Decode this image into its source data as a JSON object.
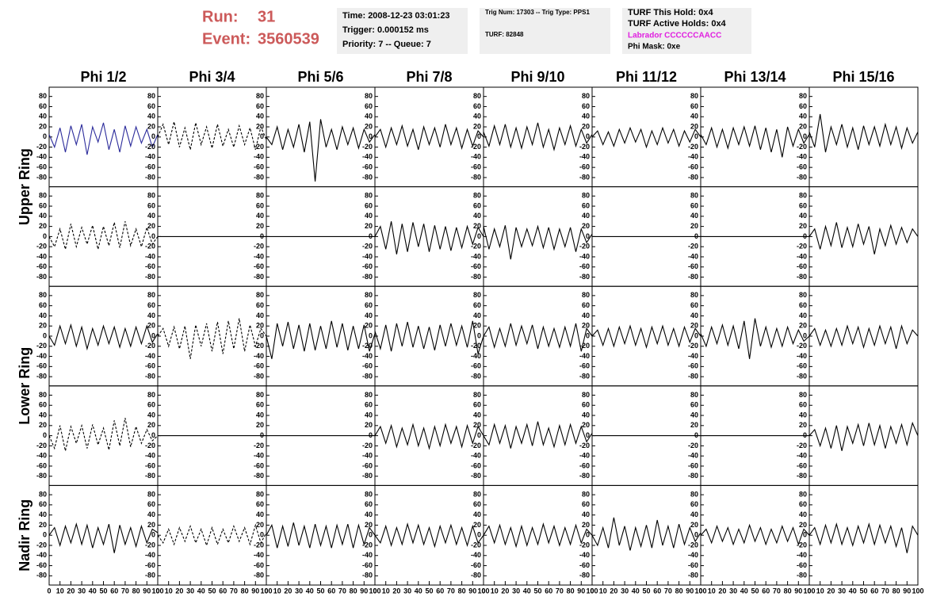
{
  "header": {
    "run_label": "Run:",
    "run": "31",
    "event_label": "Event:",
    "event": "3560539",
    "info": [
      [
        "Time: 2008-12-23 03:01:23",
        "Trigger: 0.000152 ms",
        "Priority: 7 -- Queue: 7"
      ],
      [
        "Trig Num: 17303 -- Trig Type: PPS1",
        "TURF: 82848"
      ],
      [
        "TURF This Hold: 0x4",
        "TURF Active Holds: 0x4",
        "Labrador CCCCCCAACC",
        "Phi Mask: 0xe"
      ]
    ]
  },
  "chart_data": {
    "type": "line",
    "columns": [
      "Phi 1/2",
      "Phi 3/4",
      "Phi 5/6",
      "Phi 7/8",
      "Phi 9/10",
      "Phi 11/12",
      "Phi 13/14",
      "Phi 15/16"
    ],
    "ring_labels": [
      "Upper Ring",
      "Lower Ring",
      "Nadir Ring"
    ],
    "xlim": [
      0,
      100
    ],
    "xticks": [
      0,
      10,
      20,
      30,
      40,
      50,
      60,
      70,
      80,
      90,
      100
    ],
    "ylim": [
      -92,
      92
    ],
    "yticks": [
      -80,
      -60,
      -40,
      -20,
      0,
      20,
      40,
      60,
      80
    ],
    "x": [
      0,
      5,
      10,
      15,
      20,
      25,
      30,
      35,
      40,
      45,
      50,
      55,
      60,
      65,
      70,
      75,
      80,
      85,
      90,
      95,
      100
    ],
    "panels": [
      [
        {
          "color": "#2b2b9b",
          "dash": false,
          "values": [
            5,
            -20,
            18,
            -30,
            22,
            -15,
            25,
            -35,
            20,
            -10,
            28,
            -25,
            15,
            -30,
            22,
            -18,
            20,
            -12,
            15,
            -20,
            5
          ]
        },
        {
          "color": "#000000",
          "dash": true,
          "values": [
            0,
            25,
            -15,
            30,
            -20,
            18,
            -25,
            28,
            -15,
            20,
            -22,
            25,
            -18,
            15,
            -20,
            22,
            -15,
            18,
            -25,
            20,
            -5
          ]
        },
        {
          "color": "#000000",
          "dash": false,
          "values": [
            0,
            -15,
            20,
            -25,
            15,
            -20,
            25,
            -30,
            30,
            -88,
            35,
            -20,
            15,
            -25,
            20,
            -15,
            18,
            -22,
            15,
            -10,
            5
          ]
        },
        {
          "color": "#000000",
          "dash": false,
          "values": [
            0,
            15,
            -20,
            18,
            -15,
            22,
            -18,
            15,
            -25,
            20,
            -15,
            18,
            -20,
            25,
            -15,
            18,
            -22,
            15,
            -18,
            12,
            0
          ]
        },
        {
          "color": "#000000",
          "dash": false,
          "values": [
            10,
            -18,
            22,
            -15,
            25,
            -20,
            18,
            -22,
            20,
            -15,
            28,
            -20,
            15,
            -25,
            18,
            -15,
            22,
            -18,
            15,
            -12,
            5
          ]
        },
        {
          "color": "#000000",
          "dash": false,
          "values": [
            0,
            12,
            -15,
            10,
            -18,
            15,
            -12,
            18,
            -10,
            15,
            -20,
            12,
            -15,
            18,
            -12,
            15,
            -18,
            12,
            -10,
            15,
            0
          ]
        },
        {
          "color": "#000000",
          "dash": false,
          "values": [
            5,
            -15,
            18,
            -20,
            15,
            -22,
            18,
            -15,
            20,
            -18,
            22,
            -25,
            18,
            -30,
            15,
            -40,
            20,
            -18,
            15,
            -12,
            5
          ]
        },
        {
          "color": "#000000",
          "dash": false,
          "values": [
            10,
            -20,
            45,
            -30,
            20,
            -15,
            25,
            -20,
            18,
            -25,
            22,
            -15,
            20,
            -18,
            25,
            -15,
            20,
            -22,
            18,
            -12,
            10
          ]
        }
      ],
      [
        {
          "color": "#000000",
          "dash": true,
          "values": [
            0,
            -20,
            15,
            -25,
            25,
            -20,
            18,
            -15,
            22,
            -25,
            20,
            -18,
            28,
            -22,
            30,
            -18,
            15,
            -20,
            18,
            -15,
            0
          ]
        },
        {
          "color": "#000000",
          "dash": false,
          "values": [
            0,
            0,
            0,
            0,
            0,
            0,
            0,
            0,
            0,
            0,
            0,
            0,
            0,
            0,
            0,
            0,
            0,
            0,
            0,
            0,
            0
          ]
        },
        {
          "color": "#000000",
          "dash": false,
          "values": [
            0,
            0,
            0,
            0,
            0,
            0,
            0,
            0,
            0,
            0,
            0,
            0,
            0,
            0,
            0,
            0,
            0,
            0,
            0,
            0,
            0
          ]
        },
        {
          "color": "#000000",
          "dash": false,
          "values": [
            0,
            20,
            -25,
            30,
            -35,
            25,
            -30,
            28,
            -20,
            25,
            -30,
            22,
            -25,
            20,
            -28,
            18,
            -22,
            20,
            -15,
            18,
            0
          ]
        },
        {
          "color": "#000000",
          "dash": false,
          "values": [
            20,
            -25,
            15,
            -20,
            22,
            -45,
            18,
            -20,
            15,
            -18,
            20,
            -22,
            18,
            -25,
            15,
            -20,
            18,
            -30,
            15,
            -12,
            5
          ]
        },
        {
          "color": "#000000",
          "dash": false,
          "values": [
            0,
            0,
            0,
            0,
            0,
            0,
            0,
            0,
            0,
            0,
            0,
            0,
            0,
            0,
            0,
            0,
            0,
            0,
            0,
            0,
            0
          ]
        },
        {
          "color": "#000000",
          "dash": false,
          "values": [
            0,
            0,
            0,
            0,
            0,
            0,
            0,
            0,
            0,
            0,
            0,
            0,
            0,
            0,
            0,
            0,
            0,
            0,
            0,
            0,
            0
          ]
        },
        {
          "color": "#000000",
          "dash": false,
          "values": [
            0,
            15,
            -25,
            20,
            -18,
            28,
            -22,
            18,
            -20,
            25,
            -15,
            20,
            -35,
            15,
            -18,
            22,
            -15,
            18,
            -12,
            15,
            0
          ]
        }
      ],
      [
        {
          "color": "#000000",
          "dash": false,
          "values": [
            0,
            -18,
            20,
            -15,
            22,
            -20,
            18,
            -25,
            15,
            -18,
            20,
            -15,
            18,
            -22,
            15,
            -20,
            18,
            -15,
            20,
            -12,
            5
          ]
        },
        {
          "color": "#000000",
          "dash": true,
          "values": [
            0,
            15,
            -20,
            18,
            -25,
            20,
            -45,
            22,
            -20,
            25,
            -30,
            28,
            -35,
            30,
            -25,
            35,
            -30,
            22,
            -20,
            15,
            0
          ]
        },
        {
          "color": "#000000",
          "dash": false,
          "values": [
            0,
            -45,
            25,
            -20,
            28,
            -25,
            22,
            -30,
            25,
            -28,
            20,
            -25,
            30,
            -22,
            25,
            -28,
            20,
            -25,
            22,
            -30,
            5
          ]
        },
        {
          "color": "#000000",
          "dash": false,
          "values": [
            10,
            -25,
            22,
            -30,
            25,
            -20,
            28,
            -22,
            20,
            -25,
            18,
            -28,
            22,
            -20,
            25,
            -18,
            20,
            -22,
            30,
            -35,
            0
          ]
        },
        {
          "color": "#000000",
          "dash": false,
          "values": [
            0,
            18,
            -22,
            15,
            -20,
            25,
            -18,
            20,
            -15,
            22,
            -25,
            18,
            -20,
            15,
            -22,
            18,
            -20,
            25,
            -30,
            15,
            0
          ]
        },
        {
          "color": "#000000",
          "dash": false,
          "values": [
            0,
            12,
            -18,
            15,
            -20,
            18,
            -15,
            20,
            -18,
            15,
            -22,
            18,
            -15,
            20,
            -18,
            15,
            -20,
            18,
            -12,
            15,
            0
          ]
        },
        {
          "color": "#000000",
          "dash": false,
          "values": [
            5,
            -20,
            18,
            -15,
            22,
            -18,
            20,
            -25,
            30,
            -45,
            35,
            -20,
            18,
            -22,
            15,
            -20,
            18,
            -15,
            12,
            -10,
            0
          ]
        },
        {
          "color": "#000000",
          "dash": false,
          "values": [
            0,
            15,
            -18,
            12,
            -20,
            15,
            -18,
            20,
            -15,
            18,
            -22,
            15,
            -18,
            20,
            -15,
            18,
            -25,
            20,
            -15,
            12,
            0
          ]
        }
      ],
      [
        {
          "color": "#000000",
          "dash": true,
          "values": [
            0,
            -25,
            20,
            -30,
            18,
            -15,
            20,
            -25,
            22,
            -18,
            15,
            -28,
            30,
            -20,
            35,
            -22,
            18,
            -15,
            12,
            -10,
            0
          ]
        },
        {
          "color": "#000000",
          "dash": false,
          "values": [
            0,
            0,
            0,
            0,
            0,
            0,
            0,
            0,
            0,
            0,
            0,
            0,
            0,
            0,
            0,
            0,
            0,
            0,
            0,
            0,
            0
          ]
        },
        {
          "color": "#000000",
          "dash": false,
          "values": [
            0,
            0,
            0,
            0,
            0,
            0,
            0,
            0,
            0,
            0,
            0,
            0,
            0,
            0,
            0,
            0,
            0,
            0,
            0,
            0,
            0
          ]
        },
        {
          "color": "#000000",
          "dash": false,
          "values": [
            0,
            18,
            -15,
            20,
            -22,
            15,
            -18,
            22,
            -20,
            15,
            -25,
            18,
            -20,
            22,
            -15,
            18,
            -22,
            20,
            -15,
            18,
            0
          ]
        },
        {
          "color": "#000000",
          "dash": false,
          "values": [
            0,
            -18,
            22,
            -15,
            20,
            -25,
            18,
            -15,
            22,
            -20,
            28,
            -18,
            15,
            -22,
            20,
            -18,
            22,
            -15,
            18,
            -12,
            5
          ]
        },
        {
          "color": "#000000",
          "dash": false,
          "values": [
            0,
            0,
            0,
            0,
            0,
            0,
            0,
            0,
            0,
            0,
            0,
            0,
            0,
            0,
            0,
            0,
            0,
            0,
            0,
            0,
            0
          ]
        },
        {
          "color": "#000000",
          "dash": false,
          "values": [
            0,
            0,
            0,
            0,
            0,
            0,
            0,
            0,
            0,
            0,
            0,
            0,
            0,
            0,
            0,
            0,
            0,
            0,
            0,
            0,
            0
          ]
        },
        {
          "color": "#000000",
          "dash": false,
          "values": [
            0,
            12,
            -20,
            15,
            -25,
            20,
            -30,
            18,
            -15,
            22,
            -20,
            25,
            -18,
            20,
            -25,
            18,
            -15,
            22,
            -18,
            25,
            0
          ]
        }
      ],
      [
        {
          "color": "#000000",
          "dash": false,
          "values": [
            0,
            15,
            -20,
            18,
            -15,
            22,
            -18,
            20,
            -25,
            15,
            -18,
            22,
            -35,
            20,
            -18,
            15,
            -22,
            18,
            -15,
            12,
            5
          ]
        },
        {
          "color": "#000000",
          "dash": true,
          "values": [
            0,
            -15,
            12,
            -18,
            15,
            -12,
            18,
            -15,
            12,
            -20,
            15,
            -18,
            12,
            -15,
            18,
            -12,
            15,
            -18,
            20,
            -15,
            5
          ]
        },
        {
          "color": "#000000",
          "dash": false,
          "values": [
            0,
            20,
            -25,
            18,
            -22,
            25,
            -20,
            18,
            -25,
            22,
            -20,
            18,
            -25,
            20,
            -18,
            22,
            -25,
            20,
            -18,
            15,
            0
          ]
        },
        {
          "color": "#000000",
          "dash": false,
          "values": [
            0,
            -15,
            18,
            -20,
            15,
            -18,
            22,
            -15,
            20,
            -18,
            15,
            -22,
            18,
            -15,
            20,
            -18,
            15,
            -20,
            18,
            -15,
            0
          ]
        },
        {
          "color": "#000000",
          "dash": false,
          "values": [
            0,
            18,
            -15,
            20,
            -18,
            15,
            -22,
            18,
            -20,
            15,
            -18,
            22,
            -15,
            18,
            -20,
            15,
            -18,
            20,
            -15,
            12,
            0
          ]
        },
        {
          "color": "#000000",
          "dash": false,
          "values": [
            0,
            -20,
            15,
            -25,
            35,
            -20,
            18,
            -30,
            15,
            -22,
            20,
            -25,
            30,
            -20,
            18,
            -25,
            22,
            -18,
            15,
            -12,
            5
          ]
        },
        {
          "color": "#000000",
          "dash": false,
          "values": [
            0,
            12,
            -15,
            18,
            -12,
            15,
            -18,
            12,
            -15,
            20,
            -12,
            15,
            -18,
            12,
            -15,
            18,
            -12,
            15,
            -18,
            12,
            0
          ]
        },
        {
          "color": "#000000",
          "dash": false,
          "values": [
            0,
            15,
            -18,
            20,
            -15,
            22,
            -18,
            15,
            -20,
            18,
            -15,
            22,
            -18,
            20,
            -15,
            18,
            -22,
            15,
            -35,
            18,
            0
          ]
        }
      ]
    ]
  }
}
